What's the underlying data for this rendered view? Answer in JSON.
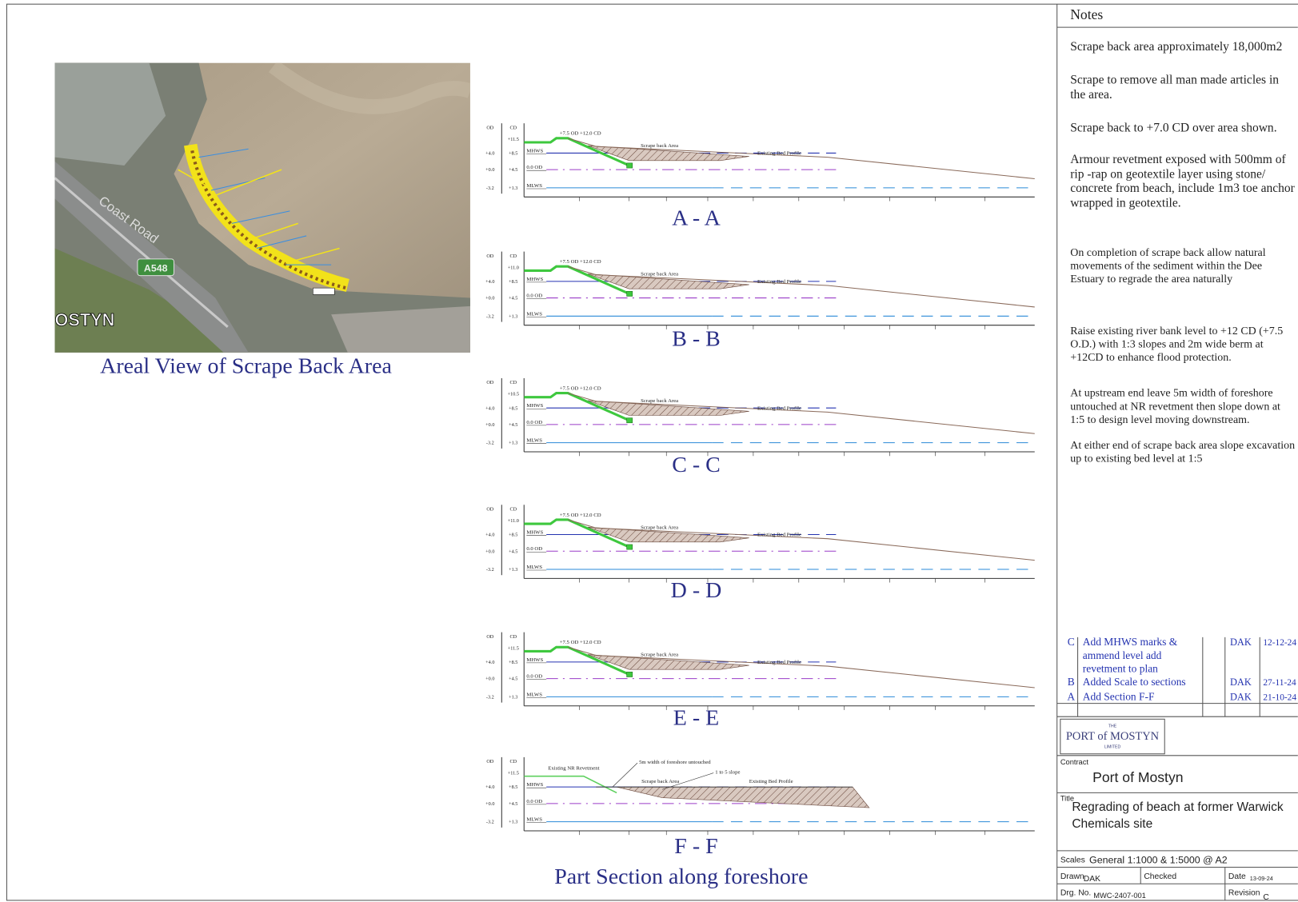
{
  "aerial": {
    "caption": "Areal View of Scrape Back Area",
    "road": "Coast Road",
    "sign": "A548",
    "place": "OSTYN"
  },
  "section_common": {
    "od": "OD",
    "cd": "CD",
    "rows": [
      [
        "+4.0",
        "+8.5",
        "MHWS"
      ],
      [
        "+0.0",
        "+4.5",
        "0.0 OD"
      ],
      [
        "-3.2",
        "+1.3",
        "MLWS"
      ]
    ]
  },
  "sections": [
    {
      "caption": "A - A",
      "cd_top": "+11.5",
      "crest": "+7.5 OD +12.0 CD",
      "scrape": "Scrape back Area",
      "bed": "Existing Bed Profile"
    },
    {
      "caption": "B - B",
      "cd_top": "+11.0",
      "crest": "+7.5 OD +12.0 CD",
      "scrape": "Scrape back Area",
      "bed": "Existing Bed Profile"
    },
    {
      "caption": "C - C",
      "cd_top": "+10.5",
      "crest": "+7.5 OD +12.0 CD",
      "scrape": "Scrape back Area",
      "bed": "Existing Bed Profile"
    },
    {
      "caption": "D - D",
      "cd_top": "+11.0",
      "crest": "+7.5 OD +12.0 CD",
      "scrape": "Scrape back Area",
      "bed": "Existing Bed Profile"
    },
    {
      "caption": "E - E",
      "cd_top": "+11.5",
      "crest": "+7.5 OD +12.0 CD",
      "scrape": "Scrape back Area",
      "bed": "Existing Bed Profile"
    },
    {
      "caption": "F - F",
      "subtitle": "Part Section along foreshore",
      "cd_top": "+11.5",
      "revetment": "Existing NR Revetment",
      "untouched": "5m width of foreshore untouched",
      "slope": "1 to 5 slope",
      "scrape": "Scrape back Area",
      "bed": "Existing Bed Profile"
    }
  ],
  "notes": {
    "title": "Notes",
    "items": [
      "Scrape back area  approximately 18,000m2",
      "Scrape to remove all man made articles in the area.",
      "Scrape  back to +7.0 CD over area shown.",
      "Armour revetment exposed with 500mm of rip -rap on geotextile  layer using stone/ concrete from beach, include 1m3 toe anchor wrapped in geotextile.",
      "On completion of scrape back allow natural movements of the sediment within the Dee Estuary to regrade the area naturally",
      "Raise existing river bank level to  +12 CD (+7.5 O.D.) with 1:3 slopes and 2m wide berm at +12CD to enhance flood protection.",
      "At upstream end leave 5m width of foreshore untouched at NR revetment then slope down at 1:5 to design level moving downstream.",
      "At either end of scrape back area slope excavation up to existing bed level at 1:5"
    ]
  },
  "revisions": [
    {
      "rev": "C",
      "description": "Add MHWS marks & ammend level add revetment to plan",
      "by": "DAK",
      "date": "12-12-24"
    },
    {
      "rev": "B",
      "description": "Added Scale to sections",
      "by": "DAK",
      "date": "27-11-24"
    },
    {
      "rev": "A",
      "description": "Add Section F-F",
      "by": "DAK",
      "date": "21-10-24"
    }
  ],
  "title_block": {
    "logo_top": "THE",
    "logo": "PORT of MOSTYN",
    "logo_bottom": "LIMITED",
    "contract_label": "Contract",
    "contract": "Port of Mostyn",
    "title_label": "Title",
    "title": "Regrading of beach  at former Warwick Chemicals site",
    "scales_label": "Scales",
    "scales": "General 1:1000 & 1:5000 @ A2",
    "drawn_label": "Drawn",
    "drawn": "DAK",
    "checked_label": "Checked",
    "date_label": "Date",
    "date": "13-09-24",
    "drg_label": "Drg. No.",
    "drg": "MWC-2407-001",
    "revision_label": "Revision",
    "revision": "C"
  }
}
